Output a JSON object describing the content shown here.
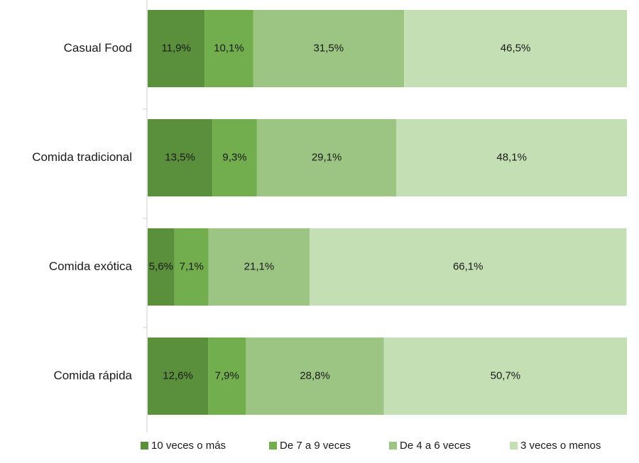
{
  "chart_data": {
    "type": "bar",
    "orientation": "horizontal",
    "stacked": "100%",
    "categories": [
      "Casual Food",
      "Comida tradicional",
      "Comida exótica",
      "Comida rápida"
    ],
    "series": [
      {
        "name": "10 veces o más",
        "values": [
          11.9,
          13.5,
          5.6,
          12.6
        ],
        "labels": [
          "11,9%",
          "13,5%",
          "5,6%",
          "12,6%"
        ],
        "color": "#5a8f3c"
      },
      {
        "name": "De 7 a 9 veces",
        "values": [
          10.1,
          9.3,
          7.1,
          7.9
        ],
        "labels": [
          "10,1%",
          "9,3%",
          "7,1%",
          "7,9%"
        ],
        "color": "#72ad4e"
      },
      {
        "name": "De 4 a 6 veces",
        "values": [
          31.5,
          29.1,
          21.1,
          28.8
        ],
        "labels": [
          "31,5%",
          "29,1%",
          "21,1%",
          "28,8%"
        ],
        "color": "#9cc584"
      },
      {
        "name": "3 veces o menos",
        "values": [
          46.5,
          48.1,
          66.1,
          50.7
        ],
        "labels": [
          "46,5%",
          "48,1%",
          "66,1%",
          "50,7%"
        ],
        "color": "#c5dfb5"
      }
    ],
    "xlim": [
      0,
      100
    ],
    "legend_position": "bottom",
    "grid": false
  }
}
